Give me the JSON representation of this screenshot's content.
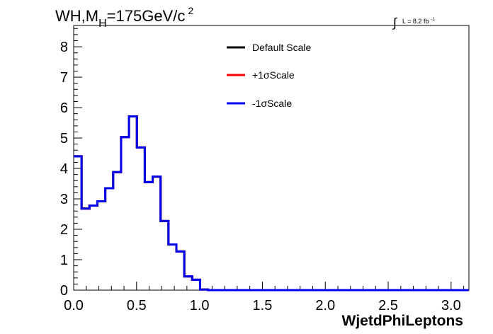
{
  "title": {
    "main": "WH,M",
    "sub": "H",
    "rest": "=175GeV/c",
    "sup": "2"
  },
  "lumi": {
    "text": "L = 8.2 fb",
    "sup": "-1",
    "integral": "∫"
  },
  "chart_data": {
    "type": "line",
    "xlabel": "WjetdPhiLeptons",
    "ylabel": "",
    "xlim": [
      0,
      3.14159
    ],
    "ylim": [
      0,
      8.7
    ],
    "xticks": [
      "0.0",
      "0.5",
      "1.0",
      "1.5",
      "2.0",
      "2.5",
      "3.0"
    ],
    "xtick_values": [
      0,
      0.5,
      1.0,
      1.5,
      2.0,
      2.5,
      3.0
    ],
    "yticks": [
      "0",
      "1",
      "2",
      "3",
      "4",
      "5",
      "6",
      "7",
      "8"
    ],
    "ytick_values": [
      0,
      1,
      2,
      3,
      4,
      5,
      6,
      7,
      8
    ],
    "legend_position": "top-center",
    "bin_width": 0.0628,
    "bin_edges_start": 0,
    "series": [
      {
        "name": "Default Scale",
        "color": "#000000",
        "values": [
          4.4,
          2.68,
          2.78,
          2.92,
          3.35,
          3.88,
          5.03,
          5.71,
          4.69,
          3.55,
          3.73,
          2.27,
          1.5,
          1.27,
          0.45,
          0.34,
          0.02,
          0,
          0,
          0,
          0,
          0,
          0,
          0,
          0,
          0,
          0,
          0,
          0,
          0,
          0,
          0,
          0,
          0,
          0,
          0,
          0,
          0,
          0,
          0,
          0,
          0,
          0,
          0,
          0,
          0,
          0,
          0,
          0,
          0
        ]
      },
      {
        "name": "+1σScale",
        "color": "#ff0000",
        "values": [
          4.4,
          2.68,
          2.78,
          2.92,
          3.35,
          3.88,
          5.03,
          5.71,
          4.69,
          3.55,
          3.73,
          2.27,
          1.5,
          1.27,
          0.45,
          0.34,
          0.02,
          0,
          0,
          0,
          0,
          0,
          0,
          0,
          0,
          0,
          0,
          0,
          0,
          0,
          0,
          0,
          0,
          0,
          0,
          0,
          0,
          0,
          0,
          0,
          0,
          0,
          0,
          0,
          0,
          0,
          0,
          0,
          0,
          0
        ]
      },
      {
        "name": "-1σScale",
        "color": "#0000ee",
        "values": [
          4.4,
          2.68,
          2.78,
          2.92,
          3.35,
          3.88,
          5.03,
          5.71,
          4.69,
          3.55,
          3.73,
          2.27,
          1.5,
          1.27,
          0.45,
          0.34,
          0.02,
          0,
          0,
          0,
          0,
          0,
          0,
          0,
          0,
          0,
          0,
          0,
          0,
          0,
          0,
          0,
          0,
          0,
          0,
          0,
          0,
          0,
          0,
          0,
          0,
          0,
          0,
          0,
          0,
          0,
          0,
          0,
          0,
          0
        ]
      }
    ]
  }
}
